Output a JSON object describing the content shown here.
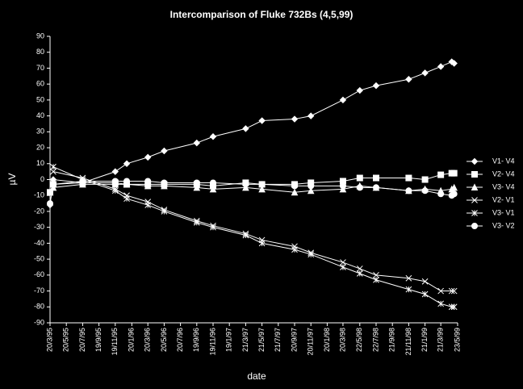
{
  "chart_data": {
    "type": "line",
    "title": "Intercomparison of Fluke 732Bs (4,5,99)",
    "x_label": "date",
    "y_label": "µV",
    "xlim": [
      "20/3/95",
      "23/5/99"
    ],
    "xticks": [
      "20/3/95",
      "20/5/95",
      "20/7/95",
      "19/9/95",
      "19/11/95",
      "20/1/96",
      "20/3/96",
      "20/5/96",
      "20/7/96",
      "19/9/96",
      "19/11/96",
      "19/1/97",
      "21/3/97",
      "21/5/97",
      "21/7/97",
      "20/9/97",
      "20/11/97",
      "20/1/98",
      "20/3/98",
      "22/5/98",
      "22/7/98",
      "21/9/98",
      "21/11/98",
      "21/1/99",
      "21/3/99",
      "23/5/99"
    ],
    "ylim": [
      -90,
      90
    ],
    "yticks": [
      -90,
      -80,
      -70,
      -60,
      -50,
      -40,
      -30,
      -20,
      -10,
      0,
      10,
      20,
      30,
      40,
      50,
      60,
      70,
      80,
      90
    ],
    "x": [
      "20/3/95",
      "1/4/95",
      "20/7/95",
      "19/11/95",
      "1/1/96",
      "20/3/96",
      "20/5/96",
      "19/9/96",
      "19/11/96",
      "21/3/97",
      "21/5/97",
      "20/9/97",
      "20/11/97",
      "20/3/98",
      "22/5/98",
      "22/7/98",
      "21/11/98",
      "21/1/99",
      "21/3/99",
      "1/5/99",
      "10/5/99"
    ],
    "series": [
      {
        "name": "V1- V4",
        "color": "#ffffff",
        "marker": "diamond",
        "values": [
          -16,
          0,
          -2,
          5,
          10,
          14,
          18,
          23,
          27,
          32,
          37,
          38,
          40,
          50,
          56,
          59,
          63,
          67,
          71,
          74,
          73
        ]
      },
      {
        "name": "V2- V4",
        "color": "#ffffff",
        "marker": "square",
        "values": [
          -8,
          -3,
          -2,
          -2,
          -3,
          -3,
          -3,
          -3,
          -4,
          -2,
          -3,
          -3,
          -2,
          -1,
          1,
          1,
          1,
          0,
          3,
          4,
          4
        ]
      },
      {
        "name": "V3- V4",
        "color": "#ffffff",
        "marker": "triangle",
        "values": [
          -8,
          -5,
          -3,
          -3,
          -3,
          -4,
          -4,
          -5,
          -6,
          -5,
          -6,
          -8,
          -7,
          -6,
          -4,
          -5,
          -7,
          -6,
          -7,
          -6,
          -5
        ]
      },
      {
        "name": "V2- V1",
        "color": "#ffffff",
        "marker": "x",
        "values": [
          null,
          5,
          1,
          -6,
          -10,
          -14,
          -19,
          -26,
          -29,
          -34,
          -38,
          -42,
          -46,
          -52,
          -56,
          -60,
          -62,
          -64,
          -70,
          -70,
          -70
        ]
      },
      {
        "name": "V3- V1",
        "color": "#ffffff",
        "marker": "star",
        "values": [
          null,
          8,
          0,
          -7,
          -12,
          -16,
          -20,
          -27,
          -30,
          -35,
          -40,
          -44,
          -47,
          -55,
          -59,
          -63,
          -69,
          -72,
          -78,
          -80,
          -80
        ]
      },
      {
        "name": "V3- V2",
        "color": "#ffffff",
        "marker": "circle",
        "values": [
          -15,
          -3,
          -1,
          -1,
          -1,
          -1,
          -2,
          -2,
          -2,
          -3,
          -3,
          -4,
          -4,
          -4,
          -5,
          -5,
          -7,
          -7,
          -9,
          -10,
          -9
        ]
      }
    ]
  }
}
